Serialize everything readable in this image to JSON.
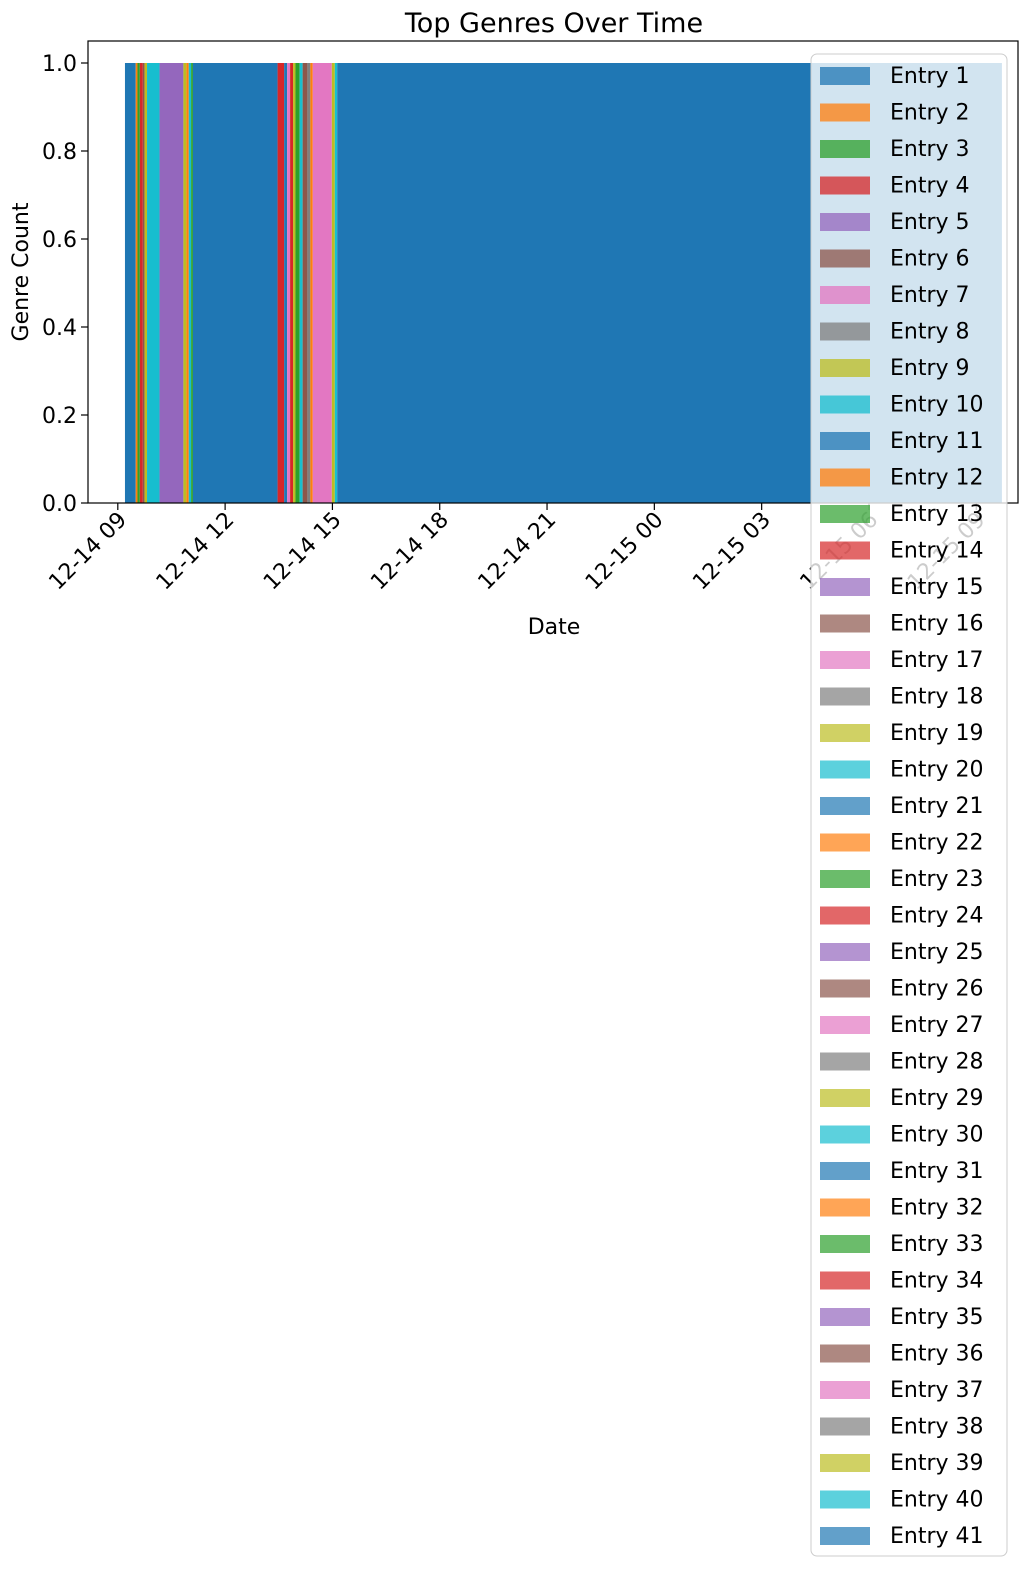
{
  "chart_data": {
    "type": "area",
    "title": "Top Genres Over Time",
    "xlabel": "Date",
    "ylabel": "Genre Count",
    "x_ticks": [
      "12-14 09",
      "12-14 12",
      "12-14 15",
      "12-14 18",
      "12-14 21",
      "12-15 00",
      "12-15 03",
      "12-15 06",
      "12-15 09"
    ],
    "x_range": [
      "12-14 08:10",
      "12-15 10:10"
    ],
    "y_ticks": [
      "0.0",
      "0.2",
      "0.4",
      "0.6",
      "0.8",
      "1.0"
    ],
    "ylim": [
      0,
      1.05
    ],
    "grid": false,
    "legend_placement": "right",
    "segments": [
      {
        "start": "12-14 09:12",
        "end": "12-14 09:30",
        "series": "Entry 1",
        "value": 1
      },
      {
        "start": "12-14 09:30",
        "end": "12-14 09:33",
        "series": "Entry 2",
        "value": 1
      },
      {
        "start": "12-14 09:33",
        "end": "12-14 09:37",
        "series": "Entry 3",
        "value": 1
      },
      {
        "start": "12-14 09:37",
        "end": "12-14 09:42",
        "series": "Entry 4",
        "value": 1
      },
      {
        "start": "12-14 09:42",
        "end": "12-14 09:45",
        "series": "Entry 6",
        "value": 1
      },
      {
        "start": "12-14 09:45",
        "end": "12-14 09:49",
        "series": "Entry 9",
        "value": 1
      },
      {
        "start": "12-14 09:49",
        "end": "12-14 10:10",
        "series": "Entry 10",
        "value": 1
      },
      {
        "start": "12-14 10:10",
        "end": "12-14 10:50",
        "series": "Entry 5",
        "value": 1
      },
      {
        "start": "12-14 10:50",
        "end": "12-14 10:55",
        "series": "Entry 9",
        "value": 1
      },
      {
        "start": "12-14 10:55",
        "end": "12-14 10:59",
        "series": "Entry 2",
        "value": 1
      },
      {
        "start": "12-14 10:59",
        "end": "12-14 11:03",
        "series": "Entry 10",
        "value": 1
      },
      {
        "start": "12-14 11:03",
        "end": "12-14 11:06",
        "series": "Entry 3",
        "value": 1
      },
      {
        "start": "12-14 11:06",
        "end": "12-14 13:28",
        "series": "Entry 1",
        "value": 1
      },
      {
        "start": "12-14 13:28",
        "end": "12-14 13:39",
        "series": "Entry 4",
        "value": 1
      },
      {
        "start": "12-14 13:39",
        "end": "12-14 13:44",
        "series": "Entry 1",
        "value": 1
      },
      {
        "start": "12-14 13:44",
        "end": "12-14 13:49",
        "series": "Entry 7",
        "value": 1
      },
      {
        "start": "12-14 13:49",
        "end": "12-14 13:54",
        "series": "Entry 4",
        "value": 1
      },
      {
        "start": "12-14 13:54",
        "end": "12-14 13:58",
        "series": "Entry 9",
        "value": 1
      },
      {
        "start": "12-14 13:58",
        "end": "12-14 14:05",
        "series": "Entry 3",
        "value": 1
      },
      {
        "start": "12-14 14:05",
        "end": "12-14 14:10",
        "series": "Entry 10",
        "value": 1
      },
      {
        "start": "12-14 14:10",
        "end": "12-14 14:18",
        "series": "Entry 6",
        "value": 1
      },
      {
        "start": "12-14 14:18",
        "end": "12-14 14:23",
        "series": "Entry 8",
        "value": 1
      },
      {
        "start": "12-14 14:23",
        "end": "12-14 14:27",
        "series": "Entry 2",
        "value": 1
      },
      {
        "start": "12-14 14:27",
        "end": "12-14 14:59",
        "series": "Entry 7",
        "value": 1
      },
      {
        "start": "12-14 14:59",
        "end": "12-14 15:04",
        "series": "Entry 9",
        "value": 1
      },
      {
        "start": "12-14 15:04",
        "end": "12-14 15:08",
        "series": "Entry 10",
        "value": 1
      },
      {
        "start": "12-14 15:08",
        "end": "12-15 09:43",
        "series": "Entry 1",
        "value": 1
      }
    ],
    "series": [
      {
        "name": "Entry 1",
        "color": "#1f77b4",
        "alpha": 0.75
      },
      {
        "name": "Entry 2",
        "color": "#ff7f0e",
        "alpha": 0.75
      },
      {
        "name": "Entry 3",
        "color": "#2ca02c",
        "alpha": 0.75
      },
      {
        "name": "Entry 4",
        "color": "#d62728",
        "alpha": 0.75
      },
      {
        "name": "Entry 5",
        "color": "#9467bd",
        "alpha": 0.75
      },
      {
        "name": "Entry 6",
        "color": "#8c564b",
        "alpha": 0.75
      },
      {
        "name": "Entry 7",
        "color": "#e377c2",
        "alpha": 0.75
      },
      {
        "name": "Entry 8",
        "color": "#7f7f7f",
        "alpha": 0.75
      },
      {
        "name": "Entry 9",
        "color": "#bcbd22",
        "alpha": 0.75
      },
      {
        "name": "Entry 10",
        "color": "#17becf",
        "alpha": 0.75
      },
      {
        "name": "Entry 11",
        "color": "#1f77b4",
        "alpha": 0.75
      },
      {
        "name": "Entry 12",
        "color": "#ff7f0e",
        "alpha": 0.75
      },
      {
        "name": "Entry 13",
        "color": "#2ca02c",
        "alpha": 0.7
      },
      {
        "name": "Entry 14",
        "color": "#d62728",
        "alpha": 0.7
      },
      {
        "name": "Entry 15",
        "color": "#9467bd",
        "alpha": 0.7
      },
      {
        "name": "Entry 16",
        "color": "#8c564b",
        "alpha": 0.7
      },
      {
        "name": "Entry 17",
        "color": "#e377c2",
        "alpha": 0.7
      },
      {
        "name": "Entry 18",
        "color": "#7f7f7f",
        "alpha": 0.7
      },
      {
        "name": "Entry 19",
        "color": "#bcbd22",
        "alpha": 0.7
      },
      {
        "name": "Entry 20",
        "color": "#17becf",
        "alpha": 0.7
      },
      {
        "name": "Entry 21",
        "color": "#1f77b4",
        "alpha": 0.7
      },
      {
        "name": "Entry 22",
        "color": "#ff7f0e",
        "alpha": 0.7
      },
      {
        "name": "Entry 23",
        "color": "#2ca02c",
        "alpha": 0.7
      },
      {
        "name": "Entry 24",
        "color": "#d62728",
        "alpha": 0.7
      },
      {
        "name": "Entry 25",
        "color": "#9467bd",
        "alpha": 0.7
      },
      {
        "name": "Entry 26",
        "color": "#8c564b",
        "alpha": 0.7
      },
      {
        "name": "Entry 27",
        "color": "#e377c2",
        "alpha": 0.7
      },
      {
        "name": "Entry 28",
        "color": "#7f7f7f",
        "alpha": 0.7
      },
      {
        "name": "Entry 29",
        "color": "#bcbd22",
        "alpha": 0.7
      },
      {
        "name": "Entry 30",
        "color": "#17becf",
        "alpha": 0.7
      },
      {
        "name": "Entry 31",
        "color": "#1f77b4",
        "alpha": 0.7
      },
      {
        "name": "Entry 32",
        "color": "#ff7f0e",
        "alpha": 0.7
      },
      {
        "name": "Entry 33",
        "color": "#2ca02c",
        "alpha": 0.7
      },
      {
        "name": "Entry 34",
        "color": "#d62728",
        "alpha": 0.7
      },
      {
        "name": "Entry 35",
        "color": "#9467bd",
        "alpha": 0.7
      },
      {
        "name": "Entry 36",
        "color": "#8c564b",
        "alpha": 0.7
      },
      {
        "name": "Entry 37",
        "color": "#e377c2",
        "alpha": 0.7
      },
      {
        "name": "Entry 38",
        "color": "#7f7f7f",
        "alpha": 0.7
      },
      {
        "name": "Entry 39",
        "color": "#bcbd22",
        "alpha": 0.7
      },
      {
        "name": "Entry 40",
        "color": "#17becf",
        "alpha": 0.7
      },
      {
        "name": "Entry 41",
        "color": "#1f77b4",
        "alpha": 0.7
      }
    ]
  }
}
